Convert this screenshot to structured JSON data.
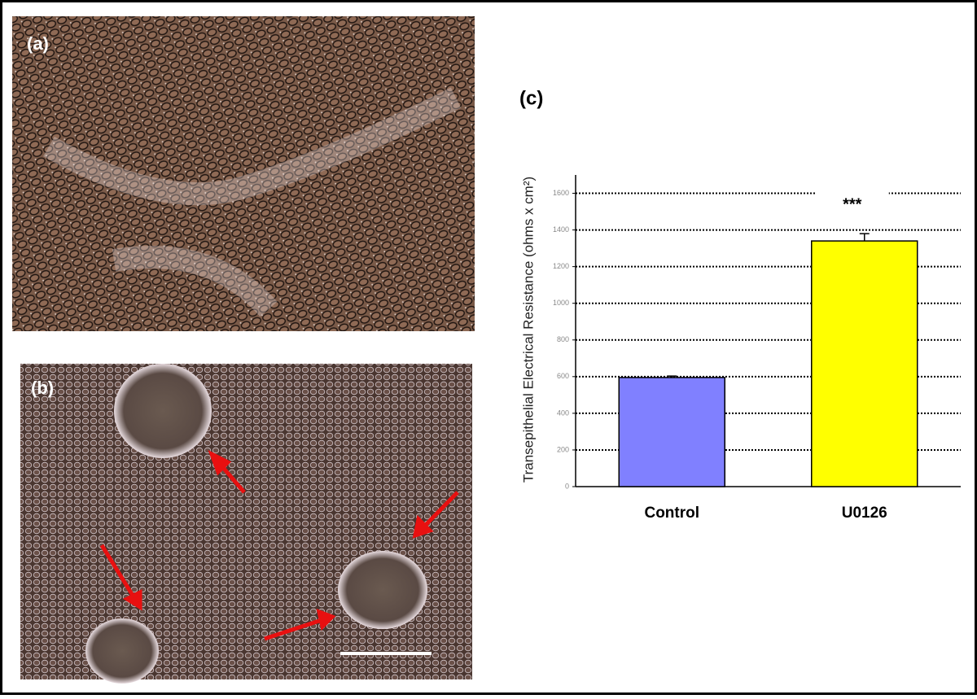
{
  "panels": {
    "a": "(a)",
    "b": "(b)"
  },
  "chart_data": {
    "type": "bar",
    "panel_label": "(c)",
    "y_label": "Transepithelial Electrical Resistance (ohms x cm²)",
    "categories": [
      "Control",
      "U0126"
    ],
    "values": [
      595,
      1340
    ],
    "errors": [
      8,
      40
    ],
    "colors": [
      "#8080ff",
      "#ffff00"
    ],
    "annotation": "***",
    "ylim": [
      0,
      1700
    ],
    "yticks": [
      0,
      200,
      400,
      600,
      800,
      1000,
      1200,
      1400,
      1600
    ],
    "grid": true
  }
}
